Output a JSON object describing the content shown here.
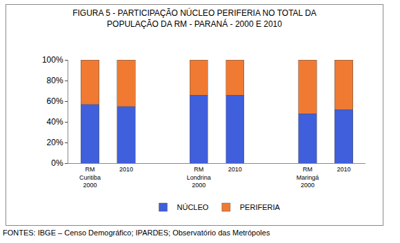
{
  "chart_data": {
    "type": "bar",
    "title": "FIGURA 5 - PARTICIPAÇÃO NÚCLEO PERIFERIA NO TOTAL DA\nPOPULAÇÃO DA RM - PARANÁ - 2000 E 2010",
    "categories": [
      "RM Curitiba 2000",
      "2010",
      null,
      "RM Londrina 2000",
      "2010",
      null,
      "RM Maringá 2000",
      "2010"
    ],
    "series": [
      {
        "name": "NÚCLEO",
        "color": "#3f5fdc",
        "values": [
          57,
          55,
          null,
          66,
          66,
          null,
          48,
          52
        ]
      },
      {
        "name": "PERIFERIA",
        "color": "#f07a32",
        "values": [
          43,
          45,
          null,
          34,
          34,
          null,
          52,
          48
        ]
      }
    ],
    "stacked": true,
    "ylim": [
      0,
      100
    ],
    "yticks": [
      {
        "value": 0,
        "label": "0%"
      },
      {
        "value": 20,
        "label": "20%"
      },
      {
        "value": 40,
        "label": "40%"
      },
      {
        "value": 60,
        "label": "60%"
      },
      {
        "value": 80,
        "label": "80%"
      },
      {
        "value": 100,
        "label": "100%"
      }
    ],
    "grid": false,
    "legend": "bottom",
    "note": "FONTES: IBGE – Censo Demográfico; IPARDES; Observatório das Metrópoles"
  }
}
